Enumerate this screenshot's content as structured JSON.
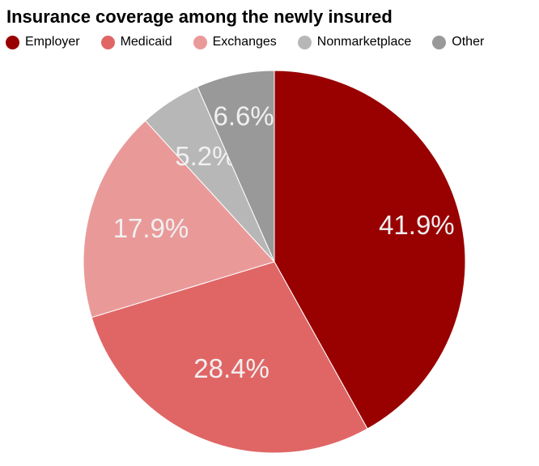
{
  "chart_data": {
    "type": "pie",
    "title": "Insurance coverage among the newly insured",
    "legend_position": "top",
    "categories": [
      "Employer",
      "Medicaid",
      "Exchanges",
      "Nonmarketplace",
      "Other"
    ],
    "values": [
      41.9,
      28.4,
      17.9,
      5.2,
      6.6
    ],
    "labels": [
      "41.9%",
      "28.4%",
      "17.9%",
      "5.2%",
      "6.6%"
    ],
    "colors": [
      "#990000",
      "#e06666",
      "#ea9999",
      "#b7b7b7",
      "#999999"
    ]
  }
}
